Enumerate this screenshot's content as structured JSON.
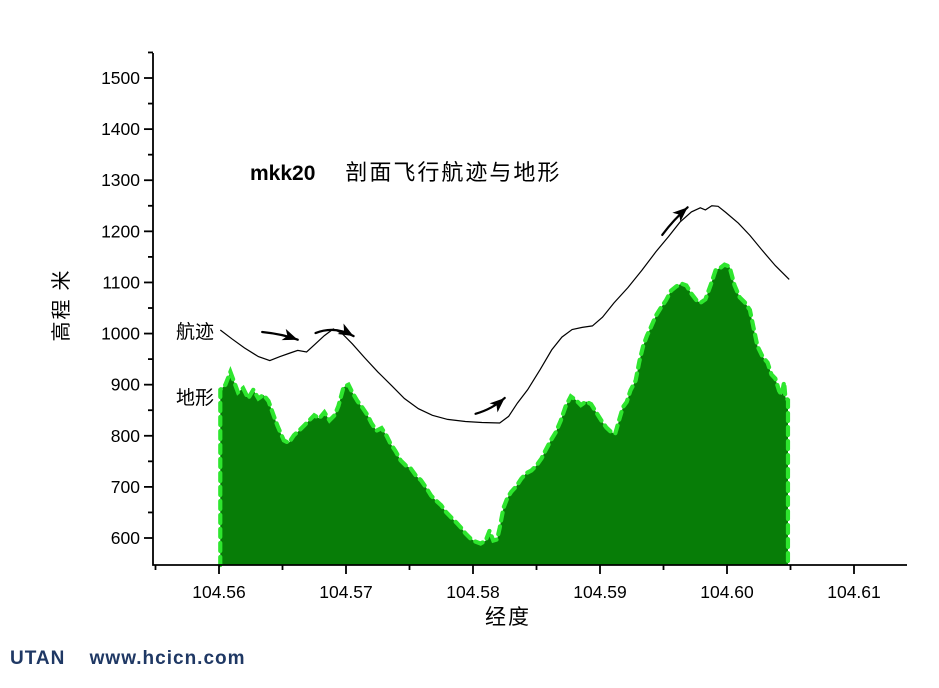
{
  "header": {
    "title_id": "mkk20",
    "title_text": "剖面飞行航迹与地形"
  },
  "footer": {
    "brand": "UTAN",
    "url": "www.hcicn.com",
    "color": "#1f3864"
  },
  "chart_data": {
    "type": "area",
    "title": "mkk20  剖面飞行航迹与地形",
    "x_axis": {
      "label": "经度",
      "min": 104.555,
      "max": 104.615,
      "major_ticks": [
        104.56,
        104.57,
        104.58,
        104.59,
        104.6,
        104.61
      ],
      "tick_labels": [
        "104.56",
        "104.57",
        "104.58",
        "104.59",
        "104.60",
        "104.61"
      ],
      "minor_ticks": [
        104.555,
        104.565,
        104.575,
        104.585,
        104.595,
        104.605
      ]
    },
    "y_axis": {
      "label": "高程 米",
      "min": 550,
      "max": 1550,
      "major_ticks": [
        600,
        700,
        800,
        900,
        1000,
        1100,
        1200,
        1300,
        1400,
        1500
      ],
      "minor_ticks": [
        650,
        750,
        850,
        950,
        1050,
        1150,
        1250,
        1350,
        1450,
        1550
      ]
    },
    "annotations": {
      "track_label": "航迹",
      "terrain_label": "地形"
    },
    "colors": {
      "terrain_fill": "#077d07",
      "terrain_outline": "#2ee62e",
      "track": "#000000",
      "axis": "#000000",
      "footer_text": "#1f3864"
    },
    "series": [
      {
        "name": "地形",
        "type": "area",
        "points": [
          [
            104.5601,
            890
          ],
          [
            104.5605,
            900
          ],
          [
            104.5609,
            925
          ],
          [
            104.5612,
            905
          ],
          [
            104.5615,
            885
          ],
          [
            104.5619,
            893
          ],
          [
            104.5623,
            873
          ],
          [
            104.5627,
            890
          ],
          [
            104.5631,
            873
          ],
          [
            104.5635,
            880
          ],
          [
            104.5639,
            868
          ],
          [
            104.5643,
            840
          ],
          [
            104.5646,
            820
          ],
          [
            104.5651,
            791
          ],
          [
            104.5655,
            786
          ],
          [
            104.5659,
            801
          ],
          [
            104.5663,
            810
          ],
          [
            104.5667,
            820
          ],
          [
            104.5671,
            830
          ],
          [
            104.5675,
            840
          ],
          [
            104.5679,
            834
          ],
          [
            104.5683,
            846
          ],
          [
            104.5687,
            830
          ],
          [
            104.5691,
            840
          ],
          [
            104.5694,
            858
          ],
          [
            104.5698,
            895
          ],
          [
            104.5702,
            900
          ],
          [
            104.5705,
            885
          ],
          [
            104.5709,
            868
          ],
          [
            104.5713,
            855
          ],
          [
            104.5717,
            840
          ],
          [
            104.572,
            825
          ],
          [
            104.5724,
            810
          ],
          [
            104.5728,
            815
          ],
          [
            104.5732,
            800
          ],
          [
            104.5735,
            785
          ],
          [
            104.5739,
            770
          ],
          [
            104.5743,
            752
          ],
          [
            104.5747,
            742
          ],
          [
            104.5751,
            736
          ],
          [
            104.5755,
            722
          ],
          [
            104.5759,
            713
          ],
          [
            104.5763,
            699
          ],
          [
            104.5767,
            683
          ],
          [
            104.5771,
            673
          ],
          [
            104.5775,
            664
          ],
          [
            104.5779,
            650
          ],
          [
            104.5783,
            640
          ],
          [
            104.5787,
            630
          ],
          [
            104.5791,
            619
          ],
          [
            104.5794,
            609
          ],
          [
            104.5798,
            599
          ],
          [
            104.5802,
            593
          ],
          [
            104.5806,
            589
          ],
          [
            104.581,
            595
          ],
          [
            104.5813,
            614
          ],
          [
            104.5816,
            595
          ],
          [
            104.5819,
            597
          ],
          [
            104.5821,
            620
          ],
          [
            104.5824,
            659
          ],
          [
            104.5827,
            678
          ],
          [
            104.583,
            690
          ],
          [
            104.5834,
            701
          ],
          [
            104.5838,
            716
          ],
          [
            104.5842,
            727
          ],
          [
            104.5846,
            732
          ],
          [
            104.585,
            742
          ],
          [
            104.5854,
            756
          ],
          [
            104.5857,
            771
          ],
          [
            104.5861,
            790
          ],
          [
            104.5865,
            806
          ],
          [
            104.5869,
            829
          ],
          [
            104.5873,
            858
          ],
          [
            104.5877,
            877
          ],
          [
            104.5881,
            870
          ],
          [
            104.5885,
            860
          ],
          [
            104.5889,
            867
          ],
          [
            104.5893,
            862
          ],
          [
            104.5897,
            846
          ],
          [
            104.5901,
            830
          ],
          [
            104.5905,
            816
          ],
          [
            104.5909,
            807
          ],
          [
            104.5912,
            804
          ],
          [
            104.5915,
            830
          ],
          [
            104.5918,
            856
          ],
          [
            104.5921,
            866
          ],
          [
            104.5924,
            889
          ],
          [
            104.5928,
            908
          ],
          [
            104.5931,
            946
          ],
          [
            104.5934,
            976
          ],
          [
            104.5937,
            996
          ],
          [
            104.594,
            1012
          ],
          [
            104.5944,
            1035
          ],
          [
            104.5948,
            1051
          ],
          [
            104.5952,
            1065
          ],
          [
            104.5956,
            1084
          ],
          [
            104.596,
            1092
          ],
          [
            104.5964,
            1098
          ],
          [
            104.5968,
            1094
          ],
          [
            104.5972,
            1078
          ],
          [
            104.5976,
            1065
          ],
          [
            104.5979,
            1060
          ],
          [
            104.5983,
            1067
          ],
          [
            104.5987,
            1094
          ],
          [
            104.5991,
            1124
          ],
          [
            104.5995,
            1129
          ],
          [
            104.5998,
            1135
          ],
          [
            104.6002,
            1131
          ],
          [
            104.6006,
            1094
          ],
          [
            104.601,
            1071
          ],
          [
            104.6014,
            1061
          ],
          [
            104.6018,
            1046
          ],
          [
            104.6021,
            1010
          ],
          [
            104.6024,
            975
          ],
          [
            104.6028,
            955
          ],
          [
            104.6032,
            943
          ],
          [
            104.6035,
            920
          ],
          [
            104.6038,
            912
          ],
          [
            104.6041,
            888
          ],
          [
            104.6043,
            880
          ],
          [
            104.6045,
            905
          ],
          [
            104.6046,
            875
          ],
          [
            104.6048,
            870
          ]
        ]
      },
      {
        "name": "航迹",
        "type": "line",
        "points": [
          [
            104.5601,
            1007
          ],
          [
            104.561,
            990
          ],
          [
            104.562,
            972
          ],
          [
            104.5631,
            955
          ],
          [
            104.564,
            947
          ],
          [
            104.5648,
            955
          ],
          [
            104.5656,
            962
          ],
          [
            104.5662,
            967
          ],
          [
            104.5669,
            964
          ],
          [
            104.5676,
            980
          ],
          [
            104.5683,
            996
          ],
          [
            104.569,
            1009
          ],
          [
            104.5697,
            1000
          ],
          [
            104.5705,
            980
          ],
          [
            104.5715,
            952
          ],
          [
            104.5725,
            925
          ],
          [
            104.5736,
            898
          ],
          [
            104.5746,
            873
          ],
          [
            104.5757,
            853
          ],
          [
            104.5768,
            840
          ],
          [
            104.578,
            832
          ],
          [
            104.5794,
            828
          ],
          [
            104.5807,
            826
          ],
          [
            104.5821,
            825
          ],
          [
            104.5828,
            838
          ],
          [
            104.5835,
            864
          ],
          [
            104.5843,
            890
          ],
          [
            104.5853,
            930
          ],
          [
            104.5862,
            968
          ],
          [
            104.587,
            993
          ],
          [
            104.5878,
            1008
          ],
          [
            104.5886,
            1012
          ],
          [
            104.5894,
            1015
          ],
          [
            104.5902,
            1032
          ],
          [
            104.5911,
            1060
          ],
          [
            104.5922,
            1090
          ],
          [
            104.5933,
            1124
          ],
          [
            104.5944,
            1160
          ],
          [
            104.5954,
            1190
          ],
          [
            104.5963,
            1218
          ],
          [
            104.5972,
            1238
          ],
          [
            104.5979,
            1246
          ],
          [
            104.5983,
            1242
          ],
          [
            104.5988,
            1250
          ],
          [
            104.5993,
            1249
          ],
          [
            104.5999,
            1237
          ],
          [
            104.6009,
            1216
          ],
          [
            104.6018,
            1192
          ],
          [
            104.6028,
            1162
          ],
          [
            104.6038,
            1133
          ],
          [
            104.6049,
            1106
          ]
        ]
      }
    ],
    "arrows": [
      {
        "points": [
          [
            104.5634,
            1003
          ],
          [
            104.565,
            999
          ],
          [
            104.5662,
            988
          ]
        ]
      },
      {
        "points": [
          [
            104.5676,
            1001
          ],
          [
            104.5691,
            1016
          ],
          [
            104.5706,
            995
          ]
        ]
      },
      {
        "points": [
          [
            104.5802,
            843
          ],
          [
            104.5815,
            852
          ],
          [
            104.5825,
            874
          ]
        ]
      },
      {
        "points": [
          [
            104.5949,
            1193
          ],
          [
            104.5958,
            1223
          ],
          [
            104.5969,
            1247
          ]
        ]
      }
    ],
    "legend_position": "none",
    "grid": false
  }
}
